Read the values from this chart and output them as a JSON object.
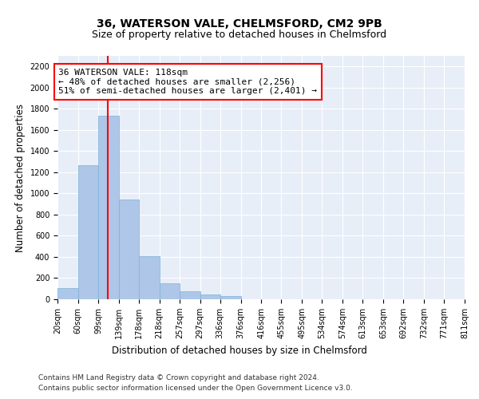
{
  "title": "36, WATERSON VALE, CHELMSFORD, CM2 9PB",
  "subtitle": "Size of property relative to detached houses in Chelmsford",
  "xlabel": "Distribution of detached houses by size in Chelmsford",
  "ylabel": "Number of detached properties",
  "bar_color": "#aec6e8",
  "bar_edge_color": "#7ab4d8",
  "bg_color": "#e8eef8",
  "grid_color": "#ffffff",
  "vline_x": 118,
  "vline_color": "red",
  "bin_edges": [
    20,
    60,
    99,
    139,
    178,
    218,
    257,
    297,
    336,
    376,
    416,
    455,
    495,
    534,
    574,
    613,
    653,
    692,
    732,
    771,
    811
  ],
  "bar_heights": [
    107,
    1265,
    1733,
    940,
    405,
    152,
    75,
    42,
    27,
    0,
    0,
    0,
    0,
    0,
    0,
    0,
    0,
    0,
    0,
    0
  ],
  "ylim": [
    0,
    2300
  ],
  "yticks": [
    0,
    200,
    400,
    600,
    800,
    1000,
    1200,
    1400,
    1600,
    1800,
    2000,
    2200
  ],
  "annotation_line1": "36 WATERSON VALE: 118sqm",
  "annotation_line2": "← 48% of detached houses are smaller (2,256)",
  "annotation_line3": "51% of semi-detached houses are larger (2,401) →",
  "annotation_box_color": "white",
  "annotation_box_edge": "red",
  "footer_line1": "Contains HM Land Registry data © Crown copyright and database right 2024.",
  "footer_line2": "Contains public sector information licensed under the Open Government Licence v3.0.",
  "title_fontsize": 10,
  "subtitle_fontsize": 9,
  "axis_label_fontsize": 8.5,
  "tick_fontsize": 7,
  "annotation_fontsize": 8,
  "footer_fontsize": 6.5
}
